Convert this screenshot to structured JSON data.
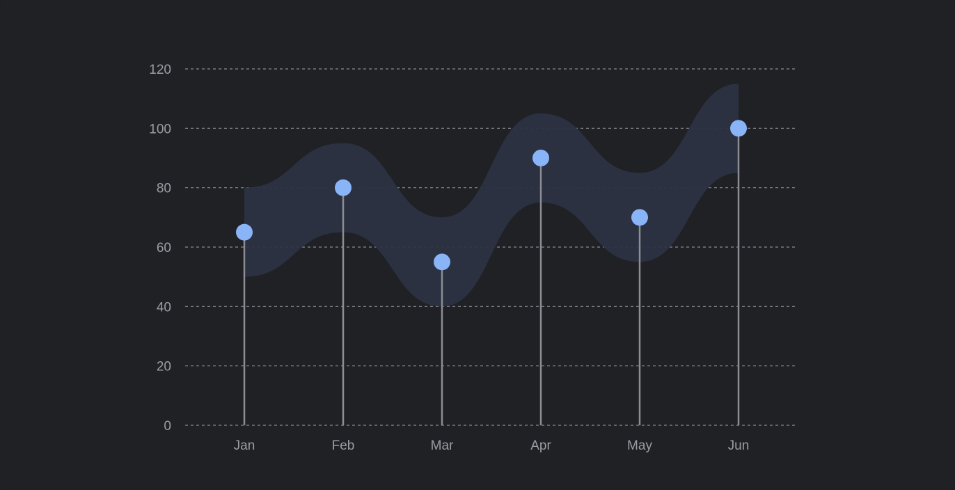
{
  "colors": {
    "background": "#202125",
    "band": "#2c3342",
    "dot": "#8ab4f8",
    "stem": "#8b8d92",
    "grid": "#8a8c92",
    "tick_text": "#9b9da3"
  },
  "chart_data": {
    "type": "scatter",
    "style": "lollipop with confidence band",
    "categories": [
      "Jan",
      "Feb",
      "Mar",
      "Apr",
      "May",
      "Jun"
    ],
    "series": [
      {
        "values": [
          65,
          80,
          55,
          90,
          70,
          100
        ]
      }
    ],
    "band": {
      "upper": [
        80,
        95,
        70,
        105,
        85,
        115
      ],
      "lower": [
        50,
        65,
        40,
        75,
        55,
        85
      ]
    },
    "yticks": [
      "0",
      "20",
      "40",
      "60",
      "80",
      "100",
      "120"
    ],
    "ylim": [
      0,
      120
    ],
    "grid": true,
    "grid_style": "dashed horizontal",
    "legend": "none"
  }
}
